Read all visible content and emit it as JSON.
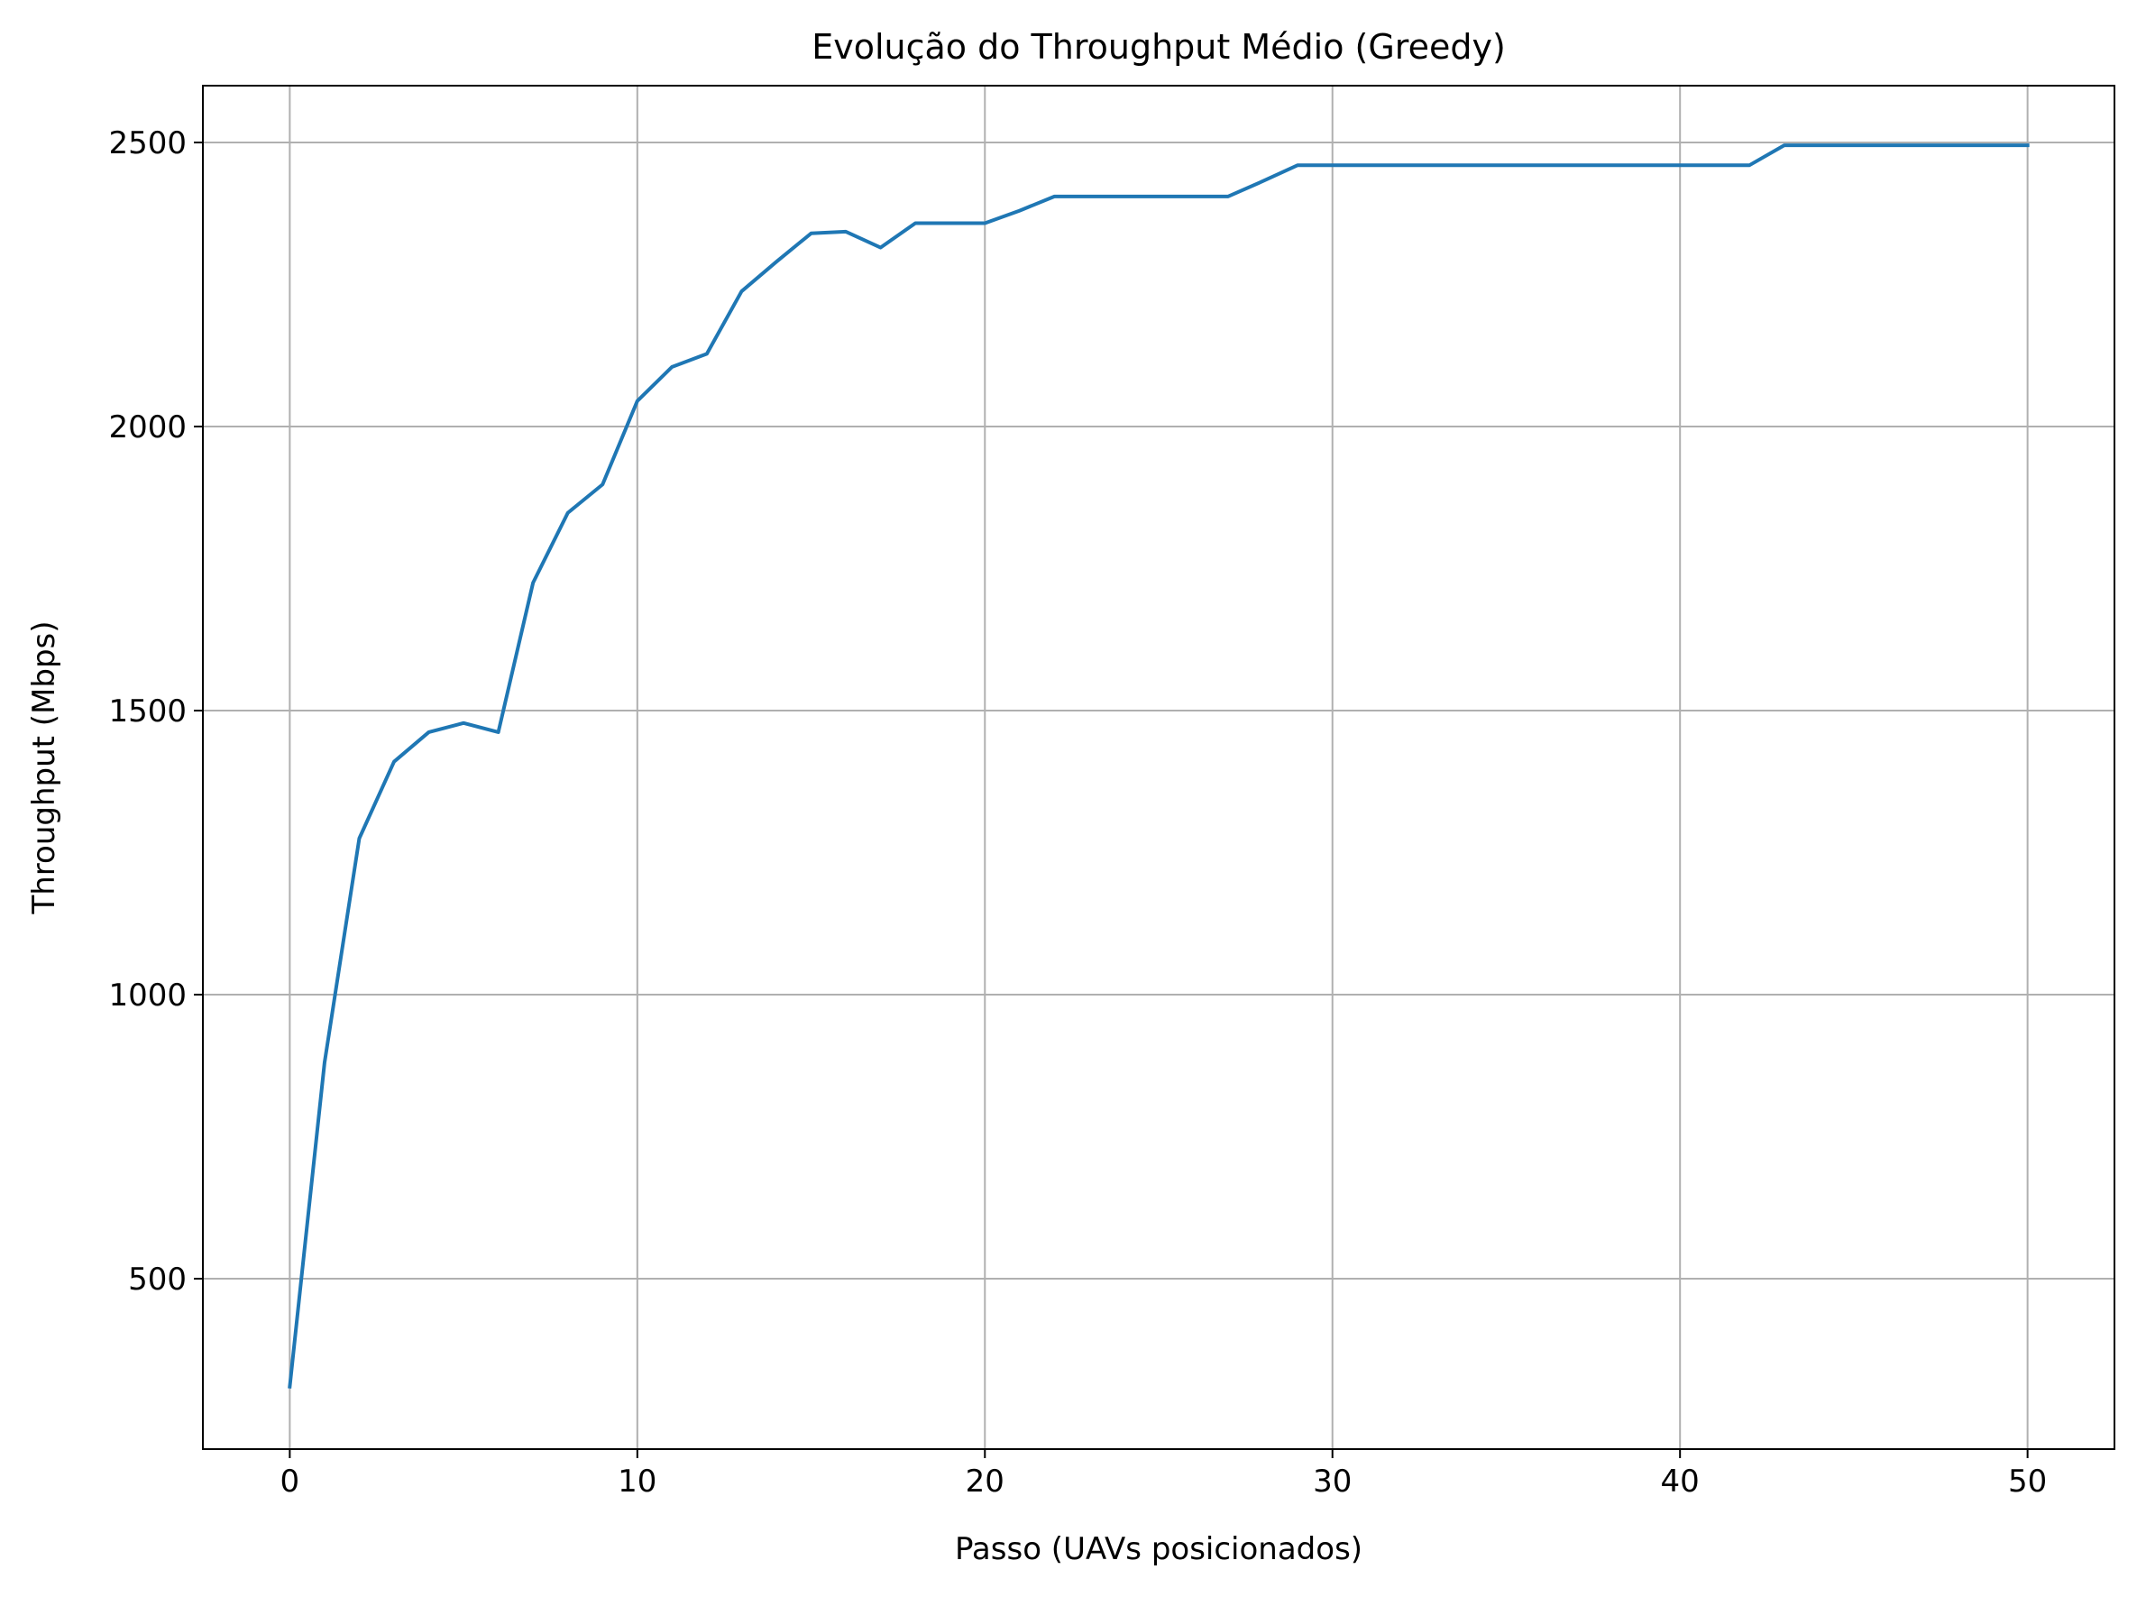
{
  "chart_data": {
    "type": "line",
    "title": "Evolução do Throughput Médio (Greedy)",
    "xlabel": "Passo (UAVs posicionados)",
    "ylabel": "Throughput (Mbps)",
    "xlim": [
      -2.5,
      52.5
    ],
    "ylim": [
      200,
      2600
    ],
    "xticks": [
      0,
      10,
      20,
      30,
      40,
      50
    ],
    "yticks": [
      500,
      1000,
      1500,
      2000,
      2500
    ],
    "xtick_labels": [
      "0",
      "10",
      "20",
      "30",
      "40",
      "50"
    ],
    "ytick_labels": [
      "500",
      "1000",
      "1500",
      "2000",
      "2500"
    ],
    "grid": true,
    "series": [
      {
        "color": "#1f77b4",
        "x": [
          0,
          1,
          2,
          3,
          4,
          5,
          6,
          7,
          8,
          9,
          10,
          11,
          12,
          13,
          14,
          15,
          16,
          17,
          18,
          19,
          20,
          21,
          22,
          23,
          24,
          25,
          26,
          27,
          28,
          29,
          30,
          31,
          32,
          33,
          34,
          35,
          36,
          37,
          38,
          39,
          40,
          41,
          42,
          43,
          44,
          45,
          46,
          47,
          48,
          49,
          50
        ],
        "values": [
          310,
          880,
          1275,
          1410,
          1462,
          1478,
          1462,
          1725,
          1848,
          1898,
          2045,
          2105,
          2128,
          2238,
          2290,
          2340,
          2343,
          2315,
          2358,
          2358,
          2358,
          2380,
          2405,
          2405,
          2405,
          2405,
          2405,
          2405,
          2432,
          2460,
          2460,
          2460,
          2460,
          2460,
          2460,
          2460,
          2460,
          2460,
          2460,
          2460,
          2460,
          2460,
          2460,
          2495,
          2495,
          2495,
          2495,
          2495,
          2495,
          2495,
          2495
        ]
      }
    ]
  }
}
